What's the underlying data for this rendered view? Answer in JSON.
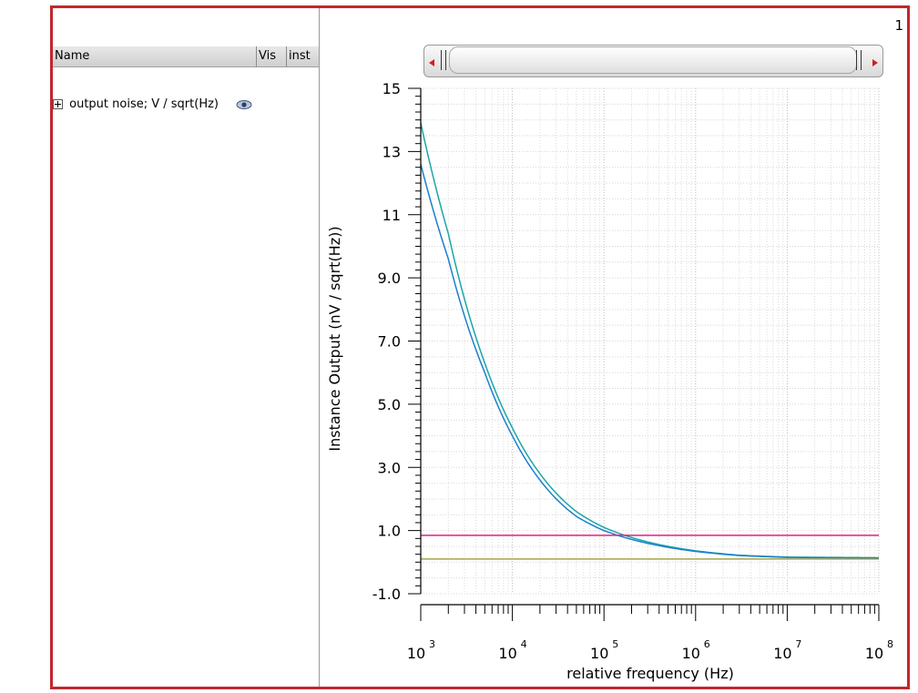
{
  "page_number": "1",
  "browser": {
    "columns": [
      "Name",
      "Vis",
      "inst"
    ],
    "items": [
      {
        "label": "output noise; V / sqrt(Hz)",
        "icon": "eye-icon"
      }
    ]
  },
  "scrollbar": {
    "left_arrow_icon": "left-arrow-icon",
    "right_arrow_icon": "right-arrow-icon"
  },
  "colors": {
    "frame": "#c0272d",
    "teal": "#1aa6a6",
    "blue": "#1c7fd0",
    "magenta": "#e0208a",
    "olive": "#a3a34a"
  },
  "chart_data": {
    "type": "line",
    "title": "",
    "xlabel": "relative frequency (Hz)",
    "ylabel": "Instance Output (nV / sqrt(Hz))",
    "x_scale": "log",
    "xlim": [
      1000,
      100000000
    ],
    "ylim": [
      -1.0,
      15
    ],
    "y_ticks": [
      "15",
      "13",
      "11",
      "9.0",
      "7.0",
      "5.0",
      "3.0",
      "1.0",
      "-1.0"
    ],
    "x_tick_labels": [
      {
        "base": "10",
        "exp": "3"
      },
      {
        "base": "10",
        "exp": "4"
      },
      {
        "base": "10",
        "exp": "5"
      },
      {
        "base": "10",
        "exp": "6"
      },
      {
        "base": "10",
        "exp": "7"
      },
      {
        "base": "10",
        "exp": "8"
      }
    ],
    "grid": true,
    "series": [
      {
        "color": "#1aa6a6",
        "x": [
          1000,
          2000,
          5000,
          10000,
          20000,
          50000,
          100000,
          200000,
          500000,
          1000000,
          3000000,
          10000000,
          30000000,
          100000000
        ],
        "y": [
          13.9,
          10.4,
          6.3,
          4.25,
          2.8,
          1.6,
          1.1,
          0.78,
          0.5,
          0.36,
          0.22,
          0.16,
          0.15,
          0.14
        ]
      },
      {
        "color": "#1c7fd0",
        "x": [
          1000,
          2000,
          5000,
          10000,
          20000,
          50000,
          100000,
          200000,
          500000,
          1000000,
          3000000,
          10000000,
          30000000,
          100000000
        ],
        "y": [
          12.6,
          9.6,
          6.0,
          4.0,
          2.6,
          1.45,
          1.0,
          0.72,
          0.47,
          0.34,
          0.21,
          0.15,
          0.14,
          0.13
        ]
      },
      {
        "color": "#e0208a",
        "x": [
          1000,
          100000000
        ],
        "y": [
          0.85,
          0.85
        ]
      },
      {
        "color": "#a3a34a",
        "x": [
          1000,
          100000000
        ],
        "y": [
          0.1,
          0.1
        ]
      }
    ]
  }
}
